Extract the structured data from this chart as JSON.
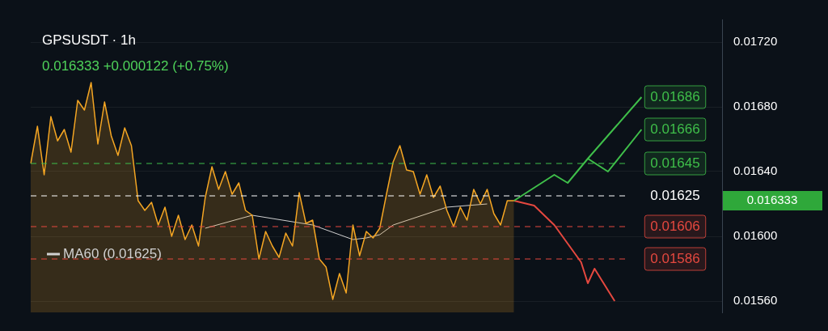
{
  "chart_data": {
    "type": "area",
    "title": "GPSUSDT · 1h",
    "subtitle": "0.016333 +0.000122 (+0.75%)",
    "categories": [
      null,
      null,
      null,
      null,
      null,
      null,
      null,
      null,
      null,
      null,
      null,
      null,
      null,
      null,
      null,
      null,
      null,
      null,
      null,
      null,
      null,
      null,
      null,
      null,
      null,
      null,
      null,
      null,
      null,
      null,
      null,
      null,
      null,
      null,
      null,
      null,
      null,
      null,
      null,
      null,
      null,
      null,
      null,
      null,
      null,
      null,
      null,
      null,
      null,
      null,
      null,
      null,
      null,
      null,
      null,
      null,
      null,
      null,
      null,
      null,
      null,
      null,
      null,
      null,
      null,
      null,
      null,
      null,
      null,
      null,
      null,
      null,
      null,
      null,
      null,
      null,
      null,
      null,
      null,
      null,
      null,
      null,
      null,
      null,
      null,
      null,
      null,
      null,
      null,
      null,
      null,
      null,
      null,
      null,
      null,
      null,
      null,
      null,
      null,
      null,
      null,
      null,
      null,
      null
    ],
    "series": [
      {
        "color": "#f5a623",
        "values": [
          0.01645,
          0.01668,
          0.01638,
          0.01674,
          0.01659,
          0.01666,
          0.01652,
          0.01684,
          0.01678,
          0.01695,
          0.01657,
          0.01683,
          0.01662,
          0.0165,
          0.01667,
          0.01656,
          0.01622,
          0.01616,
          0.01621,
          0.01607,
          0.01618,
          0.016,
          0.01613,
          0.01598,
          0.01607,
          0.01594,
          0.01624,
          0.01643,
          0.01629,
          0.0164,
          0.01626,
          0.01633,
          0.01616,
          0.01613,
          0.01586,
          0.01603,
          0.01594,
          0.01587,
          0.01602,
          0.01594,
          0.01627,
          0.01608,
          0.0161,
          0.01586,
          0.01581,
          0.01561,
          0.01577,
          0.01565,
          0.01607,
          0.01588,
          0.01603,
          0.01599,
          0.01605,
          0.01626,
          0.01646,
          0.01656,
          0.01641,
          0.0164,
          0.01626,
          0.01638,
          0.01624,
          0.01631,
          0.01616,
          0.01606,
          0.01618,
          0.0161,
          0.01629,
          0.0162,
          0.01629,
          0.01614,
          0.01607,
          0.01622,
          0.01622,
          null,
          null,
          null,
          null,
          null,
          null,
          null,
          null,
          null,
          null,
          null,
          null,
          null,
          null,
          null,
          null,
          null,
          null,
          null,
          null,
          null,
          null,
          null,
          null,
          null,
          null,
          null,
          null,
          null,
          null,
          null
        ]
      },
      {
        "type": "line",
        "name": "MA60 (0.01625)",
        "color": "#d0d0d0",
        "values": [
          null,
          null,
          null,
          null,
          null,
          null,
          null,
          null,
          null,
          null,
          null,
          null,
          null,
          null,
          null,
          null,
          null,
          null,
          null,
          null,
          null,
          null,
          null,
          null,
          null,
          null,
          0.01605,
          null,
          null,
          null,
          null,
          null,
          null,
          0.01613,
          null,
          null,
          null,
          null,
          null,
          null,
          null,
          null,
          0.01607,
          null,
          null,
          null,
          null,
          null,
          0.01598,
          null,
          0.01599,
          null,
          0.01601,
          null,
          0.01607,
          null,
          null,
          null,
          null,
          null,
          null,
          null,
          0.01618,
          null,
          null,
          null,
          null,
          null,
          0.0162,
          null,
          null,
          null,
          null,
          null,
          null,
          null,
          null,
          null,
          null,
          null,
          null,
          null,
          null,
          null,
          null,
          null,
          null,
          null,
          null,
          null,
          null,
          null,
          null,
          null,
          null,
          null,
          null,
          null,
          null,
          null,
          null,
          null,
          null,
          null
        ]
      },
      {
        "type": "line",
        "color": "#3fbf4a",
        "values": [
          null,
          null,
          null,
          null,
          null,
          null,
          null,
          null,
          null,
          null,
          null,
          null,
          null,
          null,
          null,
          null,
          null,
          null,
          null,
          null,
          null,
          null,
          null,
          null,
          null,
          null,
          null,
          null,
          null,
          null,
          null,
          null,
          null,
          null,
          null,
          null,
          null,
          null,
          null,
          null,
          null,
          null,
          null,
          null,
          null,
          null,
          null,
          null,
          null,
          null,
          null,
          null,
          null,
          null,
          null,
          null,
          null,
          null,
          null,
          null,
          null,
          null,
          null,
          null,
          null,
          null,
          null,
          null,
          null,
          null,
          null,
          null,
          0.01622,
          null,
          null,
          null,
          null,
          null,
          0.01638,
          null,
          0.01633,
          null,
          null,
          0.01648,
          null,
          null,
          null,
          null,
          null,
          null,
          null,
          0.01686,
          null,
          null,
          null,
          null,
          null,
          null,
          null,
          null,
          null,
          null,
          null,
          null
        ],
        "value_labels": [
          null,
          null,
          null,
          null,
          null,
          null,
          null,
          null,
          null,
          null,
          null,
          null,
          null,
          null,
          null,
          null,
          null,
          null,
          null,
          null,
          null,
          null,
          null,
          null,
          null,
          null,
          null,
          null,
          null,
          null,
          null,
          null,
          null,
          null,
          null,
          null,
          null,
          null,
          null,
          null,
          null,
          null,
          null,
          null,
          null,
          null,
          null,
          null,
          null,
          null,
          null,
          null,
          null,
          null,
          null,
          null,
          null,
          null,
          null,
          null,
          null,
          null,
          null,
          null,
          null,
          null,
          null,
          null,
          null,
          null,
          null,
          null,
          null,
          null,
          null,
          null,
          null,
          null,
          null,
          null,
          null,
          null,
          null,
          null,
          null,
          null,
          null,
          null,
          null,
          null,
          null,
          "0.01686",
          null,
          null,
          null,
          null,
          null,
          null,
          null,
          null,
          null,
          null,
          null,
          null
        ]
      },
      {
        "type": "line",
        "color": "#3fbf4a",
        "values": [
          null,
          null,
          null,
          null,
          null,
          null,
          null,
          null,
          null,
          null,
          null,
          null,
          null,
          null,
          null,
          null,
          null,
          null,
          null,
          null,
          null,
          null,
          null,
          null,
          null,
          null,
          null,
          null,
          null,
          null,
          null,
          null,
          null,
          null,
          null,
          null,
          null,
          null,
          null,
          null,
          null,
          null,
          null,
          null,
          null,
          null,
          null,
          null,
          null,
          null,
          null,
          null,
          null,
          null,
          null,
          null,
          null,
          null,
          null,
          null,
          null,
          null,
          null,
          null,
          null,
          null,
          null,
          null,
          null,
          null,
          null,
          null,
          null,
          null,
          null,
          null,
          null,
          null,
          null,
          null,
          null,
          null,
          null,
          0.01648,
          null,
          null,
          0.0164,
          null,
          null,
          null,
          null,
          0.01666,
          null,
          null,
          null,
          null,
          null,
          null,
          null,
          null,
          null,
          null,
          null,
          null
        ],
        "value_labels": [
          null,
          null,
          null,
          null,
          null,
          null,
          null,
          null,
          null,
          null,
          null,
          null,
          null,
          null,
          null,
          null,
          null,
          null,
          null,
          null,
          null,
          null,
          null,
          null,
          null,
          null,
          null,
          null,
          null,
          null,
          null,
          null,
          null,
          null,
          null,
          null,
          null,
          null,
          null,
          null,
          null,
          null,
          null,
          null,
          null,
          null,
          null,
          null,
          null,
          null,
          null,
          null,
          null,
          null,
          null,
          null,
          null,
          null,
          null,
          null,
          null,
          null,
          null,
          null,
          null,
          null,
          null,
          null,
          null,
          null,
          null,
          null,
          null,
          null,
          null,
          null,
          null,
          null,
          null,
          null,
          null,
          null,
          null,
          null,
          null,
          null,
          null,
          null,
          null,
          null,
          null,
          "0.01666",
          null,
          null,
          null,
          null,
          null,
          null,
          null,
          null,
          null,
          null,
          null,
          null
        ]
      },
      {
        "type": "line",
        "color": "#e5483f",
        "values": [
          null,
          null,
          null,
          null,
          null,
          null,
          null,
          null,
          null,
          null,
          null,
          null,
          null,
          null,
          null,
          null,
          null,
          null,
          null,
          null,
          null,
          null,
          null,
          null,
          null,
          null,
          null,
          null,
          null,
          null,
          null,
          null,
          null,
          null,
          null,
          null,
          null,
          null,
          null,
          null,
          null,
          null,
          null,
          null,
          null,
          null,
          null,
          null,
          null,
          null,
          null,
          null,
          null,
          null,
          null,
          null,
          null,
          null,
          null,
          null,
          null,
          null,
          null,
          null,
          null,
          null,
          null,
          null,
          null,
          null,
          null,
          null,
          0.01622,
          null,
          null,
          0.01619,
          null,
          null,
          0.01607,
          null,
          null,
          null,
          0.01584,
          0.01571,
          0.0158,
          null,
          null,
          0.0156,
          null,
          null,
          null,
          null,
          null,
          null,
          null,
          null,
          null,
          null,
          null,
          null,
          null,
          null,
          null,
          null
        ]
      }
    ],
    "ylim": [
      0.01553,
      0.01734
    ],
    "yticks": [
      {
        "value": 0.0156,
        "label": "0.01560"
      },
      {
        "value": 0.016,
        "label": "0.01600"
      },
      {
        "value": 0.0164,
        "label": "0.01640"
      },
      {
        "value": 0.0168,
        "label": "0.01680"
      },
      {
        "value": 0.0172,
        "label": "0.01720"
      }
    ],
    "ref_lines": [
      {
        "axis": "y",
        "value": 0.01645,
        "label": "0.01645",
        "color": "#3fbf4a",
        "line_style": "dashed"
      },
      {
        "axis": "y",
        "value": 0.01625,
        "label": "0.01625",
        "color": "#ffffff",
        "line_style": "dashed"
      },
      {
        "axis": "y",
        "value": 0.01606,
        "label": "0.01606",
        "color": "#e5483f",
        "line_style": "dashed"
      },
      {
        "axis": "y",
        "value": 0.01586,
        "label": "0.01586",
        "color": "#e5483f",
        "line_style": "dashed"
      }
    ],
    "annotations": [
      "0.016333"
    ],
    "grid": "y",
    "legend": "bottom left",
    "marker": "none",
    "tick_labels": "y"
  }
}
